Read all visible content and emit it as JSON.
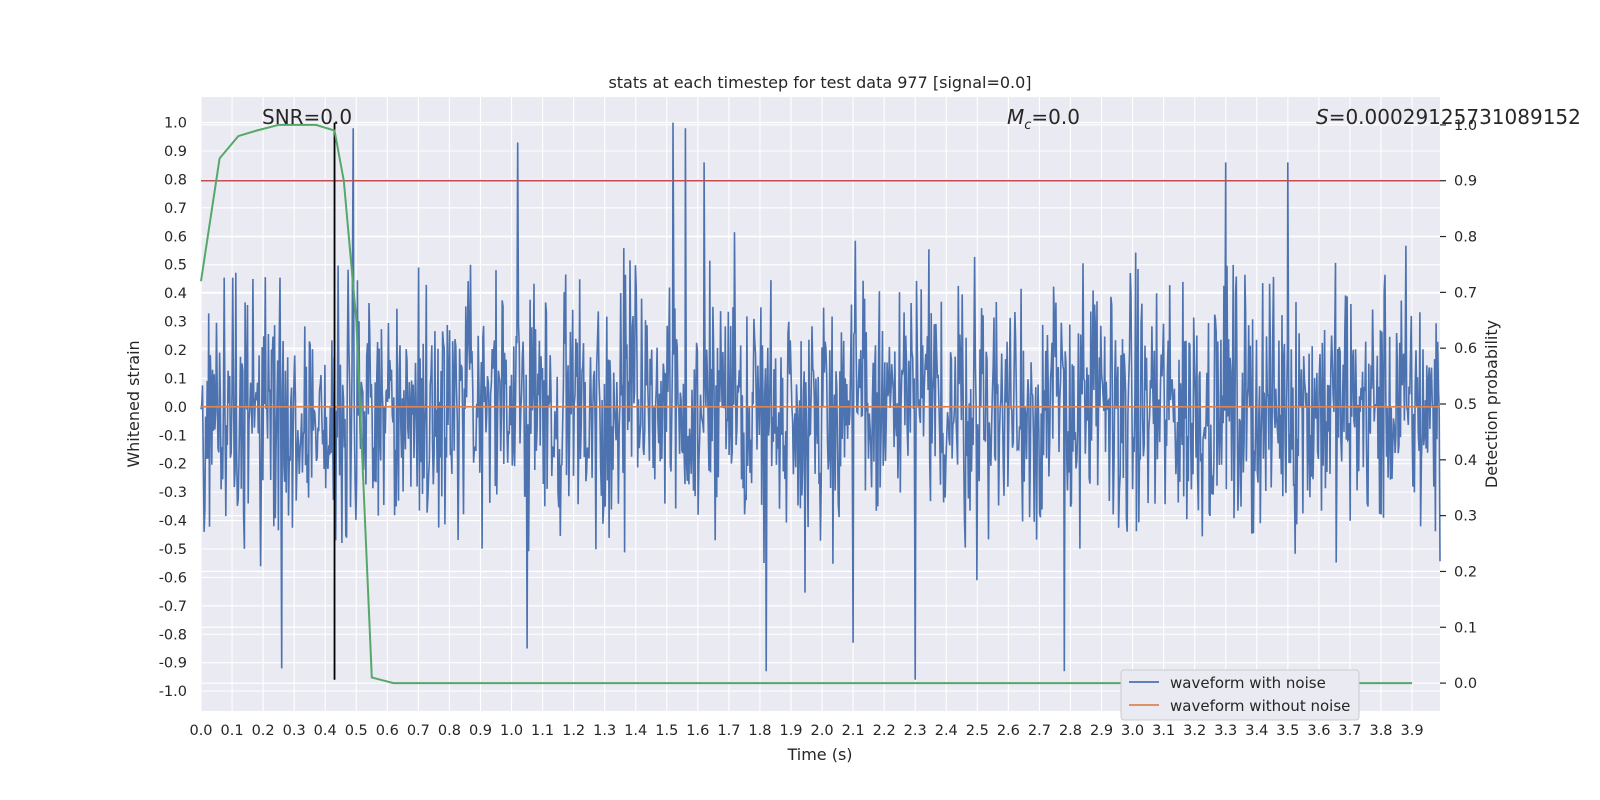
{
  "chart_data": {
    "type": "line",
    "title": "stats at each timestep for test data 977 [signal=0.0]",
    "xlabel": "Time (s)",
    "ylabel_left": "Whitened strain",
    "ylabel_right": "Detection probability",
    "xlim": [
      0.0,
      3.99
    ],
    "ylim_left": [
      -1.07,
      1.09
    ],
    "ylim_right": [
      -0.05,
      1.05
    ],
    "x_ticks": [
      "0.0",
      "0.1",
      "0.2",
      "0.3",
      "0.4",
      "0.5",
      "0.6",
      "0.7",
      "0.8",
      "0.9",
      "1.0",
      "1.1",
      "1.2",
      "1.3",
      "1.4",
      "1.5",
      "1.6",
      "1.7",
      "1.8",
      "1.9",
      "2.0",
      "2.1",
      "2.2",
      "2.3",
      "2.4",
      "2.5",
      "2.6",
      "2.7",
      "2.8",
      "2.9",
      "3.0",
      "3.1",
      "3.2",
      "3.3",
      "3.4",
      "3.5",
      "3.6",
      "3.7",
      "3.8",
      "3.9"
    ],
    "y_ticks_left": [
      "1.0",
      "0.9",
      "0.8",
      "0.7",
      "0.6",
      "0.5",
      "0.4",
      "0.3",
      "0.2",
      "0.1",
      "0.0",
      "-0.1",
      "-0.2",
      "-0.3",
      "-0.4",
      "-0.5",
      "-0.6",
      "-0.7",
      "-0.8",
      "-0.9",
      "-1.0"
    ],
    "y_ticks_right": [
      "1.0",
      "0.9",
      "0.8",
      "0.7",
      "0.6",
      "0.5",
      "0.4",
      "0.3",
      "0.2",
      "0.1",
      "0.0"
    ],
    "annotations": {
      "snr": "SNR=0.0",
      "mc_symbol": "M",
      "mc_sub": "c",
      "mc_value": "=0.0",
      "s_symbol": "S",
      "s_value": "=0.00029125731089152"
    },
    "series": [
      {
        "name": "waveform with noise",
        "color": "#4c72b0",
        "noise_envelope": {
          "typical_pos": 0.4,
          "typical_neg": -0.4,
          "min": -0.96,
          "max": 1.0
        },
        "peaks": [
          {
            "x": 0.49,
            "y": 0.98
          },
          {
            "x": 1.02,
            "y": 0.93
          },
          {
            "x": 1.52,
            "y": 1.0
          },
          {
            "x": 1.56,
            "y": 0.98
          },
          {
            "x": 1.62,
            "y": 0.86
          },
          {
            "x": 3.3,
            "y": 0.86
          },
          {
            "x": 3.5,
            "y": 0.86
          },
          {
            "x": 0.26,
            "y": -0.92
          },
          {
            "x": 1.82,
            "y": -0.93
          },
          {
            "x": 2.3,
            "y": -0.96
          },
          {
            "x": 2.78,
            "y": -0.93
          },
          {
            "x": 1.05,
            "y": -0.85
          },
          {
            "x": 2.1,
            "y": -0.83
          }
        ]
      },
      {
        "name": "waveform without noise",
        "color": "#dd8452",
        "x": [
          0.0,
          3.99
        ],
        "y": [
          0.0,
          0.0
        ]
      },
      {
        "name": "detection probability",
        "axis": "right",
        "color": "#55a868",
        "x": [
          0.0,
          0.06,
          0.12,
          0.18,
          0.25,
          0.31,
          0.37,
          0.43,
          0.46,
          0.5,
          0.55,
          0.62,
          0.7,
          1.0,
          2.0,
          3.0,
          3.9
        ],
        "y": [
          0.72,
          0.94,
          0.98,
          0.99,
          1.0,
          1.0,
          1.0,
          0.99,
          0.9,
          0.65,
          0.01,
          0.0,
          0.0,
          0.0,
          0.0,
          0.0,
          0.0
        ]
      }
    ],
    "threshold_line": {
      "axis": "right",
      "value": 0.9,
      "color": "#c44e52"
    },
    "marker_line": {
      "x": 0.43,
      "y_range": [
        -0.96,
        1.0
      ],
      "color": "#000000"
    },
    "legend": {
      "placement": "bottom-right",
      "entries": [
        {
          "label": "waveform with noise",
          "color": "#4c72b0"
        },
        {
          "label": "waveform without noise",
          "color": "#dd8452"
        }
      ]
    },
    "background": "#eaeaf2",
    "grid": true
  }
}
